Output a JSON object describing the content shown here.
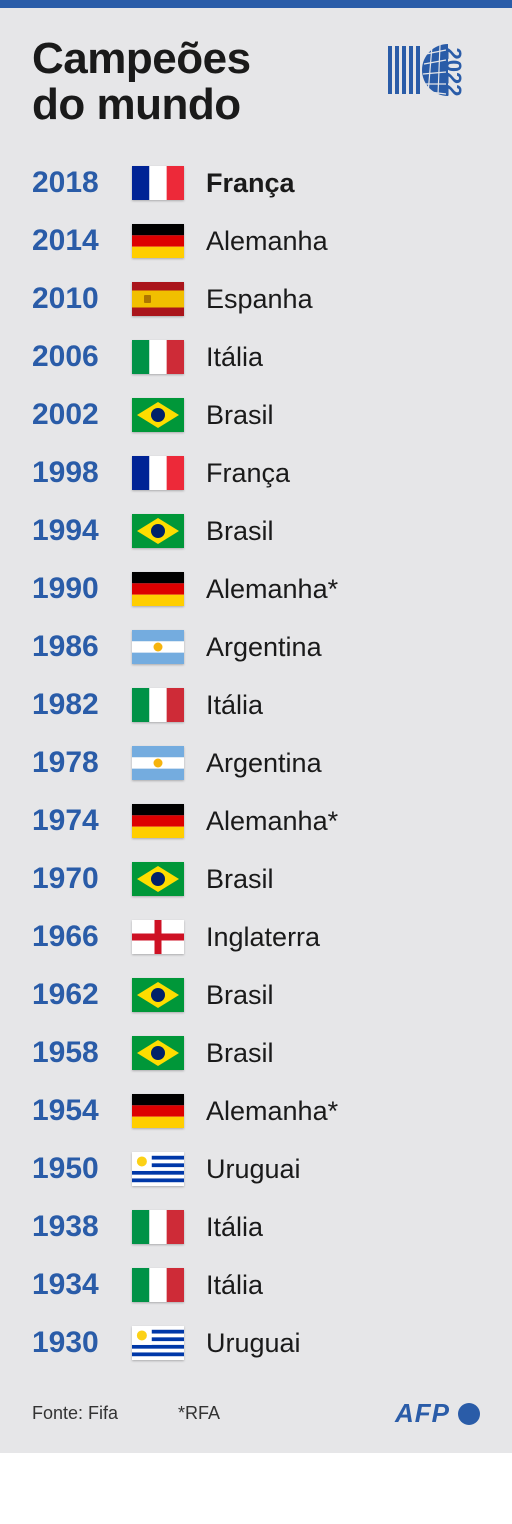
{
  "title_line1": "Campeões",
  "title_line2": "do mundo",
  "logo_year": "2022",
  "colors": {
    "accent": "#2a5ca8",
    "background": "#e6e6e8",
    "text": "#1a1a1a"
  },
  "champions": [
    {
      "year": "2018",
      "country": "França",
      "flag": "france",
      "bold": true
    },
    {
      "year": "2014",
      "country": "Alemanha",
      "flag": "germany",
      "bold": false
    },
    {
      "year": "2010",
      "country": "Espanha",
      "flag": "spain",
      "bold": false
    },
    {
      "year": "2006",
      "country": "Itália",
      "flag": "italy",
      "bold": false
    },
    {
      "year": "2002",
      "country": "Brasil",
      "flag": "brazil",
      "bold": false
    },
    {
      "year": "1998",
      "country": "França",
      "flag": "france",
      "bold": false
    },
    {
      "year": "1994",
      "country": "Brasil",
      "flag": "brazil",
      "bold": false
    },
    {
      "year": "1990",
      "country": "Alemanha*",
      "flag": "germany",
      "bold": false
    },
    {
      "year": "1986",
      "country": "Argentina",
      "flag": "argentina",
      "bold": false
    },
    {
      "year": "1982",
      "country": "Itália",
      "flag": "italy",
      "bold": false
    },
    {
      "year": "1978",
      "country": "Argentina",
      "flag": "argentina",
      "bold": false
    },
    {
      "year": "1974",
      "country": "Alemanha*",
      "flag": "germany",
      "bold": false
    },
    {
      "year": "1970",
      "country": "Brasil",
      "flag": "brazil",
      "bold": false
    },
    {
      "year": "1966",
      "country": "Inglaterra",
      "flag": "england",
      "bold": false
    },
    {
      "year": "1962",
      "country": "Brasil",
      "flag": "brazil",
      "bold": false
    },
    {
      "year": "1958",
      "country": "Brasil",
      "flag": "brazil",
      "bold": false
    },
    {
      "year": "1954",
      "country": "Alemanha*",
      "flag": "germany",
      "bold": false
    },
    {
      "year": "1950",
      "country": "Uruguai",
      "flag": "uruguay",
      "bold": false
    },
    {
      "year": "1938",
      "country": "Itália",
      "flag": "italy",
      "bold": false
    },
    {
      "year": "1934",
      "country": "Itália",
      "flag": "italy",
      "bold": false
    },
    {
      "year": "1930",
      "country": "Uruguai",
      "flag": "uruguay",
      "bold": false
    }
  ],
  "footer": {
    "source": "Fonte: Fifa",
    "note": "*RFA",
    "credit": "AFP"
  },
  "flags": {
    "france": {
      "stripes_v": [
        "#002395",
        "#ffffff",
        "#ed2939"
      ]
    },
    "germany": {
      "stripes_h": [
        "#000000",
        "#dd0000",
        "#ffce00"
      ]
    },
    "spain": {
      "stripes_h_weighted": [
        [
          "#aa151b",
          1
        ],
        [
          "#f1bf00",
          2
        ],
        [
          "#aa151b",
          1
        ]
      ],
      "emblem": "#ad7500"
    },
    "italy": {
      "stripes_v": [
        "#009246",
        "#ffffff",
        "#ce2b37"
      ]
    },
    "brazil": {
      "bg": "#009739",
      "diamond": "#fedd00",
      "circle": "#012169"
    },
    "argentina": {
      "stripes_h": [
        "#74acdf",
        "#ffffff",
        "#74acdf"
      ],
      "sun": "#f6b40e"
    },
    "england": {
      "bg": "#ffffff",
      "cross": "#ce1124"
    },
    "uruguay": {
      "bg": "#ffffff",
      "stripe": "#0038a8",
      "sun": "#fcd116"
    }
  }
}
